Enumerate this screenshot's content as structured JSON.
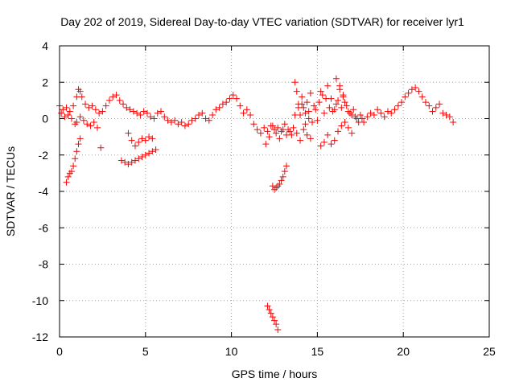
{
  "chart_data": {
    "type": "scatter",
    "title": "Day 202 of 2019, Sidereal Day-to-day VTEC variation (SDTVAR) for receiver lyr1",
    "xlabel": "GPS time / hours",
    "ylabel": "SDTVAR / TECUs",
    "xlim": [
      0,
      25
    ],
    "ylim": [
      -12,
      4
    ],
    "xticks": [
      "0",
      "5",
      "10",
      "15",
      "20",
      "25"
    ],
    "yticks": [
      "4",
      "2",
      "0",
      "-2",
      "-4",
      "-6",
      "-8",
      "-10",
      "-12"
    ],
    "grid": true,
    "marker": "+",
    "color": "#ff0000",
    "series": [
      {
        "name": "SDTVAR",
        "x": [
          0.0,
          0.2,
          0.4,
          0.6,
          0.8,
          1.0,
          1.1,
          1.2,
          1.3,
          1.5,
          1.7,
          1.9,
          2.1,
          2.3,
          2.5,
          2.7,
          2.9,
          3.1,
          3.3,
          3.5,
          3.7,
          3.9,
          4.1,
          4.3,
          4.5,
          4.7,
          4.9,
          5.1,
          5.3,
          5.5,
          5.7,
          5.9,
          6.1,
          6.3,
          6.5,
          6.7,
          6.9,
          7.1,
          7.3,
          7.5,
          7.7,
          7.9,
          8.1,
          8.3,
          8.5,
          8.7,
          8.9,
          9.1,
          9.3,
          9.5,
          9.7,
          9.9,
          10.1,
          10.3,
          10.5,
          10.7,
          10.9,
          11.1,
          11.3,
          11.5,
          11.7,
          11.9,
          12.1,
          12.3,
          12.5,
          12.7,
          12.9,
          13.1,
          13.3,
          13.5,
          13.7,
          13.9,
          14.1,
          14.3,
          14.5,
          14.7,
          14.9,
          15.1,
          15.3,
          15.5,
          15.7,
          15.9,
          16.1,
          16.3,
          16.5,
          16.7,
          16.9,
          17.1,
          17.3,
          17.5,
          17.7,
          17.9,
          18.1,
          18.3,
          18.5,
          18.7,
          18.9,
          19.1,
          19.3,
          19.5,
          19.7,
          19.9,
          20.1,
          20.3,
          20.5,
          20.7,
          20.9,
          21.1,
          21.3,
          21.5,
          21.7,
          21.9,
          22.1,
          22.3,
          22.5,
          22.7,
          22.9,
          0.1,
          0.3,
          0.5,
          0.7,
          0.9,
          1.0,
          1.2,
          1.4,
          1.6,
          1.8,
          2.0,
          2.2,
          2.4,
          0.4,
          0.5,
          0.6,
          0.7,
          0.8,
          0.9,
          1.0,
          1.1,
          1.2,
          3.6,
          3.8,
          4.0,
          4.2,
          4.4,
          4.6,
          4.8,
          5.0,
          5.2,
          5.4,
          5.6,
          4.0,
          4.2,
          4.4,
          4.6,
          4.8,
          5.0,
          5.2,
          5.4,
          12.4,
          12.5,
          12.6,
          12.7,
          12.8,
          12.9,
          13.0,
          13.1,
          13.2,
          12.1,
          12.2,
          12.3,
          12.4,
          12.5,
          12.6,
          12.7,
          13.7,
          13.8,
          13.9,
          14.0,
          14.1,
          14.2,
          14.3,
          14.4,
          14.5,
          14.6,
          14.8,
          15.0,
          15.2,
          15.4,
          15.6,
          15.8,
          16.0,
          16.1,
          16.2,
          16.3,
          16.4,
          16.5,
          16.6,
          16.8,
          17.0,
          17.2,
          17.4,
          17.6,
          13.8,
          14.0,
          14.2,
          14.4,
          14.6,
          15.2,
          15.4,
          15.6,
          15.8,
          16.0,
          16.2,
          16.4,
          16.6,
          16.8,
          17.0,
          12.0,
          12.2,
          12.4,
          12.6,
          12.8,
          13.0,
          13.2,
          13.4,
          13.6
        ],
        "y": [
          0.7,
          0.5,
          0.6,
          0.4,
          0.7,
          1.2,
          1.6,
          1.5,
          1.2,
          0.8,
          0.6,
          0.7,
          0.5,
          0.3,
          0.4,
          0.7,
          1.0,
          1.2,
          1.3,
          1.0,
          0.8,
          0.6,
          0.5,
          0.4,
          0.3,
          0.2,
          0.4,
          0.3,
          0.1,
          0.0,
          0.3,
          0.4,
          0.1,
          -0.1,
          -0.2,
          -0.1,
          -0.3,
          -0.2,
          -0.4,
          -0.3,
          -0.1,
          0.0,
          0.2,
          0.3,
          0.0,
          -0.1,
          0.2,
          0.5,
          0.6,
          0.8,
          0.9,
          1.1,
          1.3,
          1.1,
          0.7,
          0.3,
          0.5,
          0.2,
          -0.3,
          -0.6,
          -0.8,
          -0.5,
          -0.7,
          -0.4,
          -0.6,
          -0.5,
          -0.7,
          -0.3,
          -0.6,
          -0.9,
          0.2,
          0.6,
          0.8,
          0.3,
          0.0,
          -0.2,
          0.5,
          0.9,
          1.3,
          1.1,
          0.6,
          0.4,
          0.8,
          1.6,
          1.2,
          0.7,
          0.3,
          0.5,
          0.0,
          0.2,
          -0.2,
          0.1,
          0.3,
          0.2,
          0.5,
          0.3,
          0.1,
          0.4,
          0.3,
          0.5,
          0.7,
          0.9,
          1.2,
          1.4,
          1.6,
          1.7,
          1.5,
          1.2,
          0.9,
          0.7,
          0.4,
          0.6,
          0.8,
          0.3,
          0.2,
          0.1,
          -0.2,
          0.3,
          0.1,
          0.2,
          0.0,
          -0.3,
          -0.2,
          0.1,
          -0.1,
          -0.3,
          -0.4,
          -0.2,
          -0.5,
          -1.6,
          -3.5,
          -3.2,
          -3.0,
          -2.9,
          -2.6,
          -2.2,
          -1.8,
          -1.4,
          -1.1,
          -2.3,
          -2.4,
          -2.5,
          -2.4,
          -2.3,
          -2.2,
          -2.1,
          -2.0,
          -1.9,
          -1.8,
          -1.7,
          -0.8,
          -1.2,
          -1.5,
          -1.3,
          -1.1,
          -1.2,
          -1.0,
          -1.1,
          -3.7,
          -3.9,
          -3.8,
          -3.7,
          -3.6,
          -3.4,
          -3.2,
          -2.9,
          -2.6,
          -10.3,
          -10.5,
          -10.7,
          -10.9,
          -11.1,
          -11.3,
          -11.6,
          2.0,
          1.5,
          0.8,
          0.2,
          1.2,
          0.6,
          -0.3,
          0.9,
          0.4,
          1.4,
          0.7,
          -0.1,
          1.5,
          0.3,
          1.8,
          1.1,
          0.5,
          2.2,
          1.0,
          1.8,
          0.6,
          1.3,
          0.9,
          0.4,
          0.2,
          0.1,
          -0.2,
          0.0,
          -0.8,
          -1.2,
          -0.6,
          -0.9,
          -1.1,
          -1.5,
          -1.3,
          -0.9,
          -1.4,
          -1.2,
          -0.7,
          -0.4,
          -0.2,
          -0.5,
          -0.8,
          -1.4,
          -1.0,
          -0.4,
          -0.8,
          -1.1,
          -0.6,
          -0.9,
          -0.7,
          -0.5
        ]
      }
    ]
  }
}
